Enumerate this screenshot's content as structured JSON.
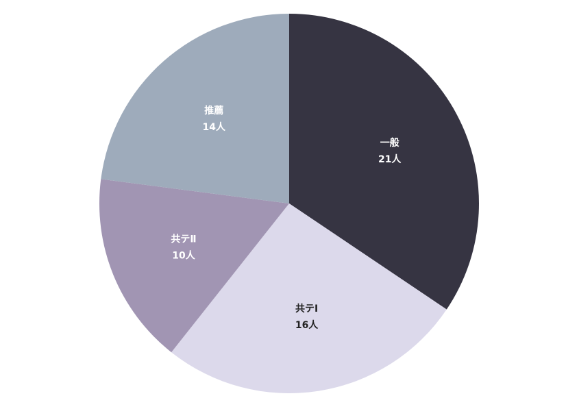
{
  "chart_data": {
    "type": "pie",
    "unit": "人",
    "start_category": "一般",
    "direction": "clockwise",
    "slices": [
      {
        "name": "一般",
        "value": 21,
        "value_label": "21人",
        "color": "#363442",
        "label_color": "#ffffff"
      },
      {
        "name": "共テⅠ",
        "value": 16,
        "value_label": "16人",
        "color": "#dcd9eb",
        "label_color": "#222222"
      },
      {
        "name": "共テⅡ",
        "value": 10,
        "value_label": "10人",
        "color": "#a195b3",
        "label_color": "#ffffff"
      },
      {
        "name": "推薦",
        "value": 14,
        "value_label": "14人",
        "color": "#9eabbb",
        "label_color": "#ffffff"
      }
    ]
  }
}
